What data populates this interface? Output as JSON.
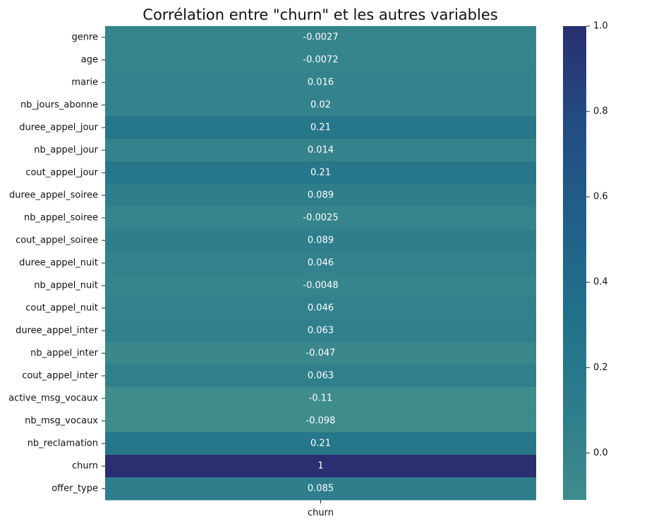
{
  "chart_data": {
    "type": "heatmap",
    "title": "Corrélation entre \"churn\" et les autres variables",
    "x_categories": [
      "churn"
    ],
    "y_categories": [
      "genre",
      "age",
      "marie",
      "nb_jours_abonne",
      "duree_appel_jour",
      "nb_appel_jour",
      "cout_appel_jour",
      "duree_appel_soiree",
      "nb_appel_soiree",
      "cout_appel_soiree",
      "duree_appel_nuit",
      "nb_appel_nuit",
      "cout_appel_nuit",
      "duree_appel_inter",
      "nb_appel_inter",
      "cout_appel_inter",
      "active_msg_vocaux",
      "nb_msg_vocaux",
      "nb_reclamation",
      "churn",
      "offer_type"
    ],
    "values": [
      -0.0027,
      -0.0072,
      0.016,
      0.02,
      0.21,
      0.014,
      0.21,
      0.089,
      -0.0025,
      0.089,
      0.046,
      -0.0048,
      0.046,
      0.063,
      -0.047,
      0.063,
      -0.11,
      -0.098,
      0.21,
      1,
      0.085
    ],
    "value_labels": [
      "-0.0027",
      "-0.0072",
      "0.016",
      "0.02",
      "0.21",
      "0.014",
      "0.21",
      "0.089",
      "-0.0025",
      "0.089",
      "0.046",
      "-0.0048",
      "0.046",
      "0.063",
      "-0.047",
      "0.063",
      "-0.11",
      "-0.098",
      "0.21",
      "1",
      "0.085"
    ],
    "colorbar": {
      "vmin": -0.11,
      "vmax": 1.0,
      "ticks": [
        "0.0",
        "0.2",
        "0.4",
        "0.6",
        "0.8",
        "1.0"
      ],
      "tick_values": [
        0.0,
        0.2,
        0.4,
        0.6,
        0.8,
        1.0
      ],
      "colors": [
        "#3f8c8c",
        "#2c7c8c",
        "#21708a",
        "#205f88",
        "#234b84",
        "#292f70"
      ]
    }
  }
}
